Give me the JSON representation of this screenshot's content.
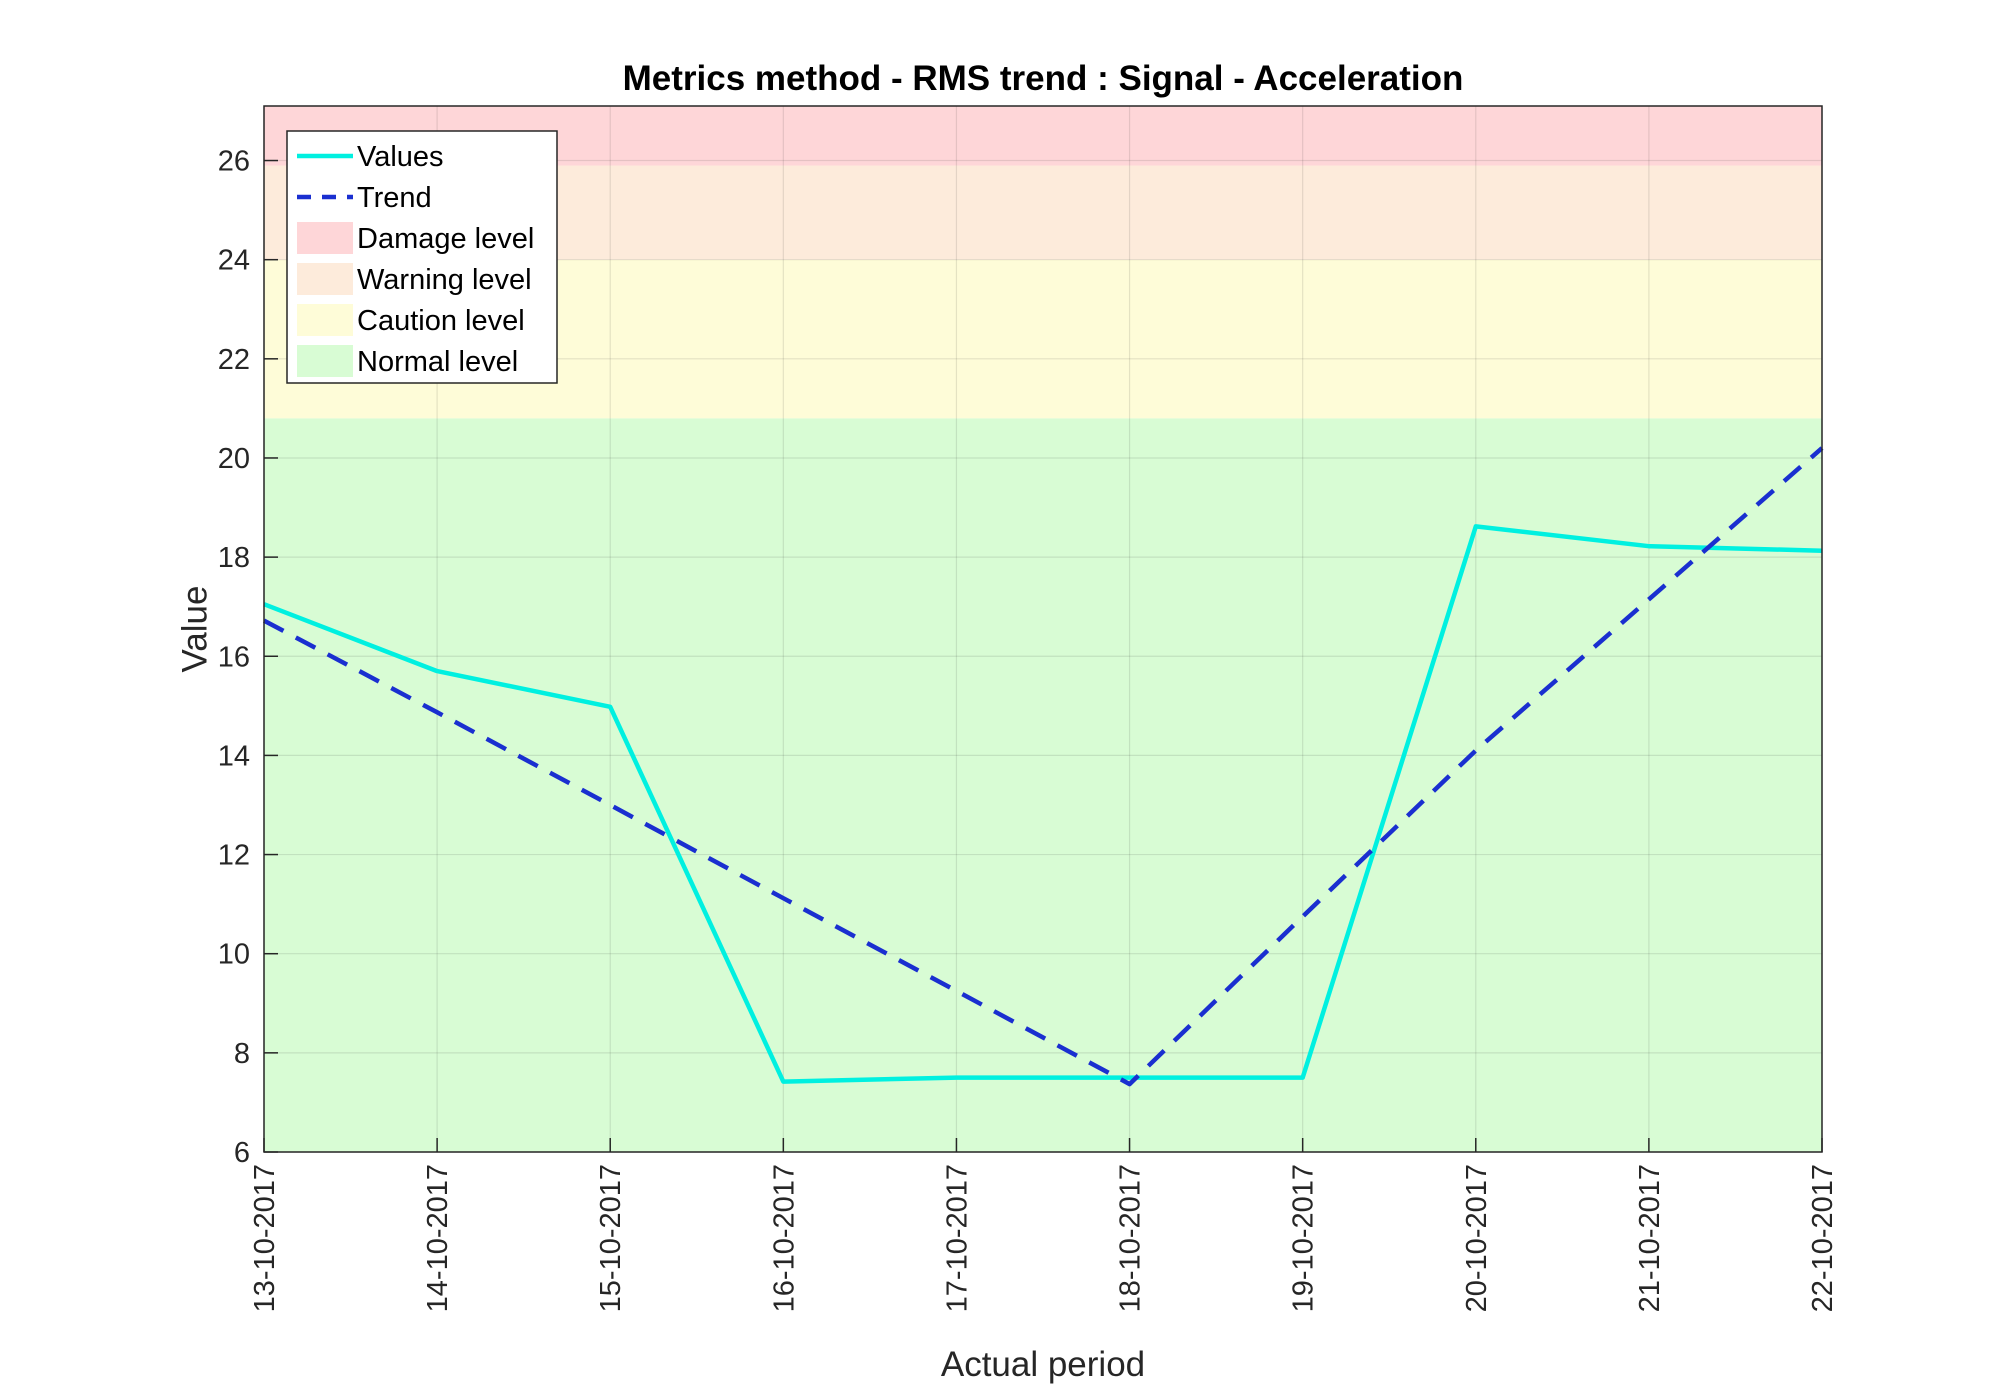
{
  "chart_data": {
    "type": "line",
    "title": "Metrics method - RMS trend : Signal - Acceleration",
    "xlabel": "Actual period",
    "ylabel": "Value",
    "categories": [
      "13-10-2017",
      "14-10-2017",
      "15-10-2017",
      "16-10-2017",
      "17-10-2017",
      "18-10-2017",
      "19-10-2017",
      "20-10-2017",
      "21-10-2017",
      "22-10-2017"
    ],
    "ylim": [
      6,
      27.1
    ],
    "yticks": [
      6,
      8,
      10,
      12,
      14,
      16,
      18,
      20,
      22,
      24,
      26
    ],
    "grid": true,
    "legend_position": "top-left",
    "series": [
      {
        "name": "Values",
        "style": "solid",
        "color": "#00f0e0",
        "values": [
          17.05,
          15.7,
          14.98,
          7.42,
          7.5,
          7.5,
          7.5,
          18.62,
          18.22,
          18.13
        ]
      },
      {
        "name": "Trend",
        "style": "dashed",
        "color": "#1a2fd0",
        "values": [
          16.72,
          14.87,
          13.0,
          11.12,
          9.25,
          7.37,
          10.75,
          14.1,
          17.15,
          20.2
        ]
      }
    ],
    "bands": [
      {
        "name": "Normal level",
        "from": 6,
        "to": 20.8,
        "color": "#d8fcd4"
      },
      {
        "name": "Caution level",
        "from": 20.8,
        "to": 24.0,
        "color": "#fefcd8"
      },
      {
        "name": "Warning level",
        "from": 24.0,
        "to": 25.9,
        "color": "#fdebdb"
      },
      {
        "name": "Damage level",
        "from": 25.9,
        "to": 27.1,
        "color": "#fed6d8"
      }
    ],
    "legend": [
      "Values",
      "Trend",
      "Damage level",
      "Warning level",
      "Caution level",
      "Normal level"
    ]
  }
}
